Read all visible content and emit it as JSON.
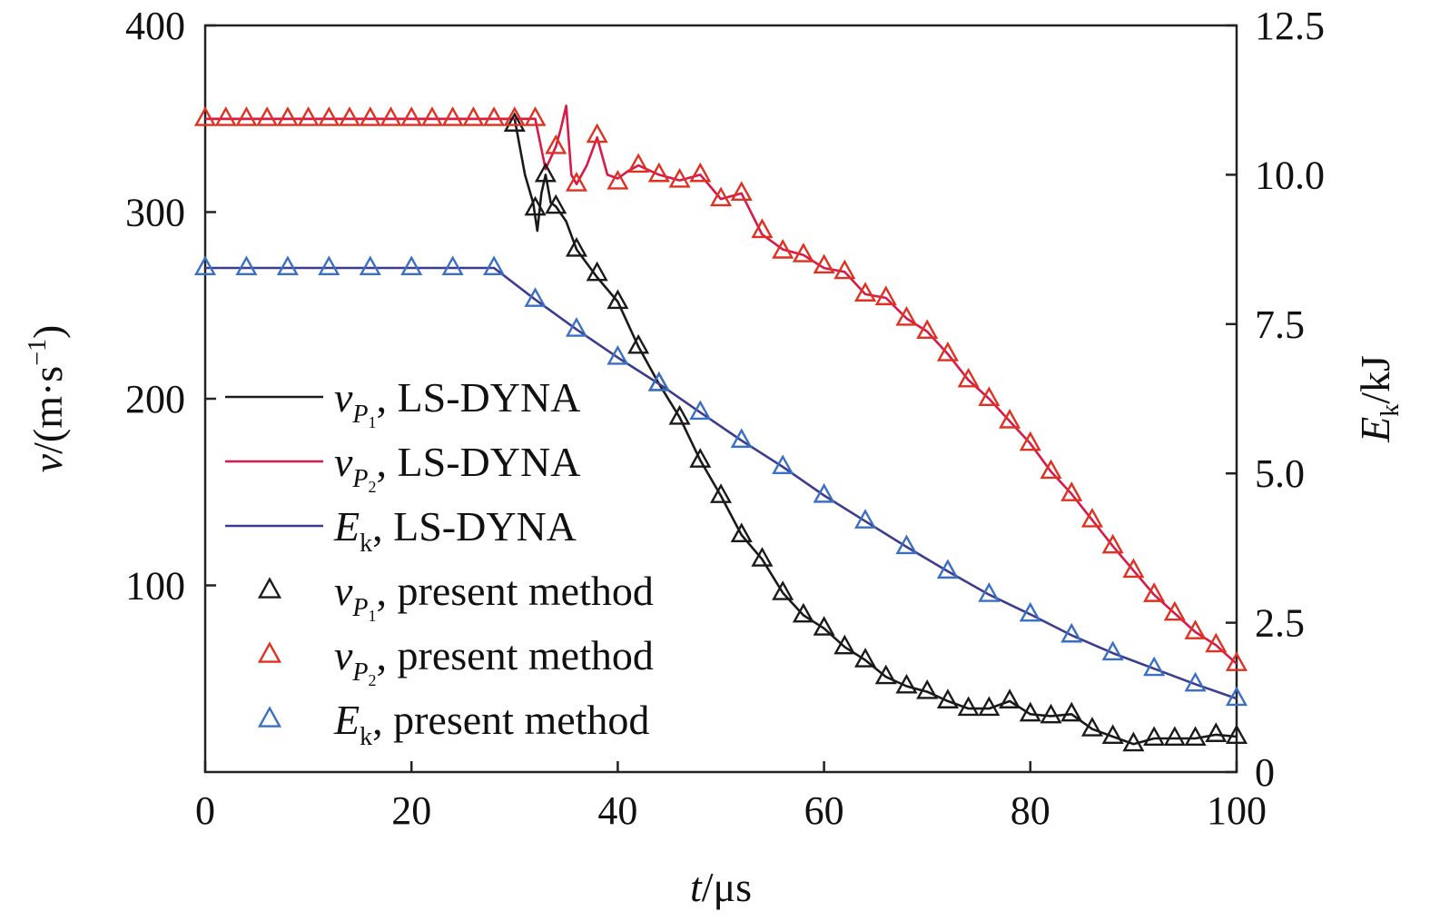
{
  "chart_data": {
    "type": "line",
    "x_axis": {
      "label_italic": "t",
      "label_unit": "/μs",
      "range": [
        0,
        100
      ],
      "ticks": [
        0,
        20,
        40,
        60,
        80,
        100
      ],
      "tick_labels": [
        "0",
        "20",
        "40",
        "60",
        "80",
        "100"
      ]
    },
    "y_axis_left": {
      "label_italic": "v",
      "label_unit": "/(m·s",
      "label_sup": "−1",
      "label_close": ")",
      "range": [
        0,
        400
      ],
      "ticks": [
        100,
        200,
        300,
        400
      ],
      "tick_labels": [
        "100",
        "200",
        "300",
        "400"
      ]
    },
    "y_axis_right": {
      "label_italic": "E",
      "label_sub": "k",
      "label_unit": "/kJ",
      "range": [
        0,
        12.5
      ],
      "ticks": [
        0,
        2.5,
        5.0,
        7.5,
        10.0,
        12.5
      ],
      "tick_labels": [
        "0",
        "2.5",
        "5.0",
        "7.5",
        "10.0",
        "12.5"
      ]
    },
    "grid": false,
    "legend_placement": "center-left",
    "series": [
      {
        "key": "vp1_lsdyna",
        "kind": "line",
        "axis": "left",
        "color": "#1a1a1a",
        "legend": {
          "sym": "v",
          "sub": "P",
          "subsub": "1",
          "text": ", LS-DYNA"
        },
        "x": [
          0,
          30,
          31,
          31.8,
          32.2,
          32.6,
          33,
          33.5,
          34,
          35,
          36,
          38,
          40,
          42,
          44,
          46,
          48,
          50,
          52,
          54,
          56,
          58,
          60,
          62,
          64,
          66,
          68,
          70,
          72,
          74,
          76,
          78,
          80,
          82,
          84,
          86,
          88,
          90,
          92,
          94,
          96,
          98,
          100
        ],
        "y": [
          350,
          350,
          320,
          305,
          290,
          310,
          320,
          305,
          303,
          295,
          280,
          265,
          252,
          228,
          208,
          190,
          167,
          148,
          127,
          114,
          96,
          84,
          77,
          67,
          60,
          51,
          46,
          43,
          38,
          34,
          34,
          38,
          31,
          30,
          31,
          23,
          19,
          15,
          18,
          18,
          18,
          20,
          19
        ]
      },
      {
        "key": "vp2_lsdyna",
        "kind": "line",
        "axis": "left",
        "color": "#d8194a",
        "legend": {
          "sym": "v",
          "sub": "P",
          "subsub": "2",
          "text": ", LS-DYNA"
        },
        "x": [
          0,
          32,
          33,
          34,
          34.5,
          35,
          35.5,
          36,
          37,
          38,
          39,
          40,
          41,
          42,
          44,
          46,
          48,
          50,
          52,
          54,
          56,
          58,
          60,
          62,
          64,
          66,
          68,
          70,
          72,
          74,
          76,
          78,
          80,
          82,
          84,
          86,
          88,
          90,
          92,
          94,
          96,
          98,
          100
        ],
        "y": [
          350,
          350,
          323,
          335,
          345,
          357,
          320,
          315,
          325,
          340,
          320,
          318,
          322,
          325,
          320,
          317,
          320,
          307,
          310,
          288,
          280,
          277,
          270,
          268,
          256,
          254,
          243,
          236,
          224,
          210,
          200,
          188,
          176,
          161,
          149,
          135,
          121,
          108,
          95,
          85,
          75,
          68,
          58
        ]
      },
      {
        "key": "ek_lsdyna",
        "kind": "line",
        "axis": "right",
        "color": "#3d3d8f",
        "legend": {
          "sym": "E",
          "sub": "k",
          "subsub": "",
          "text": ", LS-DYNA"
        },
        "x": [
          0,
          28,
          32,
          36,
          40,
          44,
          48,
          52,
          56,
          60,
          64,
          68,
          72,
          76,
          80,
          84,
          88,
          92,
          96,
          100
        ],
        "y": [
          8.44,
          8.44,
          7.91,
          7.41,
          6.94,
          6.5,
          6.02,
          5.55,
          5.11,
          4.63,
          4.2,
          3.77,
          3.36,
          2.97,
          2.64,
          2.29,
          1.99,
          1.73,
          1.47,
          1.23
        ]
      },
      {
        "key": "vp1_present",
        "kind": "markers",
        "axis": "left",
        "color": "#1a1a1a",
        "legend": {
          "sym": "v",
          "sub": "P",
          "subsub": "1",
          "text": ", present method"
        },
        "x": [
          30,
          32,
          33,
          34,
          36,
          38,
          40,
          42,
          44,
          46,
          48,
          50,
          52,
          54,
          56,
          58,
          60,
          62,
          64,
          66,
          68,
          70,
          72,
          74,
          76,
          78,
          80,
          82,
          84,
          86,
          88,
          90,
          92,
          94,
          96,
          98,
          100
        ],
        "y": [
          347,
          302,
          320,
          303,
          280,
          267,
          252,
          228,
          208,
          190,
          167,
          148,
          127,
          114,
          96,
          84,
          77,
          67,
          60,
          51,
          46,
          43,
          38,
          34,
          34,
          38,
          31,
          30,
          31,
          23,
          19,
          15,
          18,
          18,
          18,
          20,
          19
        ]
      },
      {
        "key": "vp2_present",
        "kind": "markers",
        "axis": "left",
        "color": "#e03020",
        "legend": {
          "sym": "v",
          "sub": "P",
          "subsub": "2",
          "text": ", present method"
        },
        "x": [
          0,
          2,
          4,
          6,
          8,
          10,
          12,
          14,
          16,
          18,
          20,
          22,
          24,
          26,
          28,
          30,
          32,
          34,
          36,
          38,
          40,
          42,
          44,
          46,
          48,
          50,
          52,
          54,
          56,
          58,
          60,
          62,
          64,
          66,
          68,
          70,
          72,
          74,
          76,
          78,
          80,
          82,
          84,
          86,
          88,
          90,
          92,
          94,
          96,
          98,
          100
        ],
        "y": [
          350,
          350,
          350,
          350,
          350,
          350,
          350,
          350,
          350,
          350,
          350,
          350,
          350,
          350,
          350,
          350,
          350,
          335,
          315,
          341,
          316,
          325,
          320,
          317,
          320,
          307,
          310,
          290,
          279,
          277,
          271,
          268,
          256,
          254,
          243,
          236,
          224,
          210,
          200,
          188,
          176,
          161,
          149,
          135,
          121,
          108,
          95,
          85,
          75,
          68,
          58
        ]
      },
      {
        "key": "ek_present",
        "kind": "markers",
        "axis": "right",
        "color": "#3a6fc4",
        "legend": {
          "sym": "E",
          "sub": "k",
          "subsub": "",
          "text": ", present method"
        },
        "x": [
          0,
          4,
          8,
          12,
          16,
          20,
          24,
          28,
          32,
          36,
          40,
          44,
          48,
          52,
          56,
          60,
          64,
          68,
          72,
          76,
          80,
          84,
          88,
          92,
          96,
          100
        ],
        "y": [
          8.44,
          8.44,
          8.44,
          8.44,
          8.44,
          8.44,
          8.44,
          8.44,
          7.91,
          7.41,
          6.94,
          6.5,
          6.02,
          5.55,
          5.11,
          4.63,
          4.2,
          3.77,
          3.36,
          2.97,
          2.64,
          2.29,
          1.99,
          1.73,
          1.47,
          1.23
        ]
      }
    ]
  }
}
